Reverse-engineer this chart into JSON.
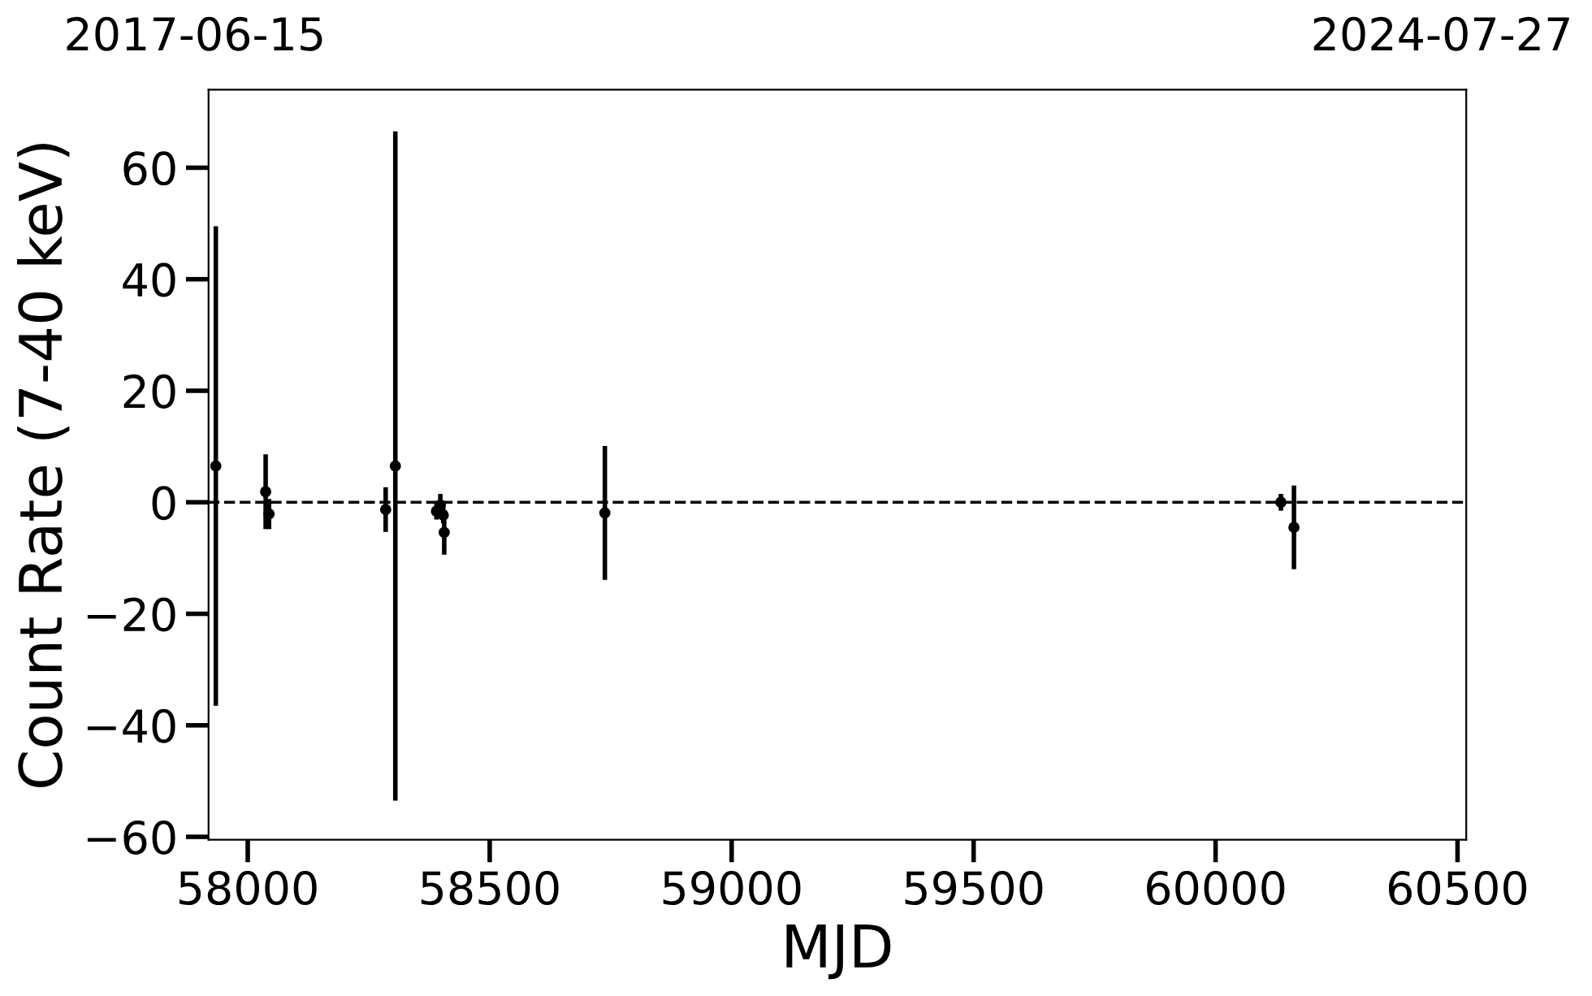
{
  "chart_data": {
    "type": "scatter",
    "xlabel": "MJD",
    "ylabel": "Count Rate (7-40 keV)",
    "x": [
      57934,
      58037,
      58044,
      58285,
      58305,
      58390,
      58398,
      58404,
      58406,
      58738,
      60135,
      60162
    ],
    "values": [
      6.5,
      1.9,
      -2.1,
      -1.3,
      6.5,
      -1.6,
      -0.5,
      -2.3,
      -5.4,
      -1.9,
      0,
      -4.5
    ],
    "errors": [
      43,
      6.7,
      2.7,
      4,
      60,
      1.5,
      2,
      1.5,
      4,
      12,
      1.5,
      7.5
    ],
    "color": "#000000",
    "marker": "circle",
    "grid": false,
    "xlim": [
      57919,
      60518
    ],
    "xticks": [
      58000,
      58500,
      59000,
      59500,
      60000,
      60500
    ],
    "ylim": [
      -60.5,
      74
    ],
    "yticks": [
      -60,
      -40,
      -20,
      0,
      20,
      40,
      60
    ],
    "annotations": [
      "2017-06-15",
      "2024-07-27"
    ],
    "ref_lines": [
      {
        "axis": "y",
        "value": 0,
        "label": null,
        "color": "#000000",
        "line_style": "dashed"
      }
    ]
  }
}
